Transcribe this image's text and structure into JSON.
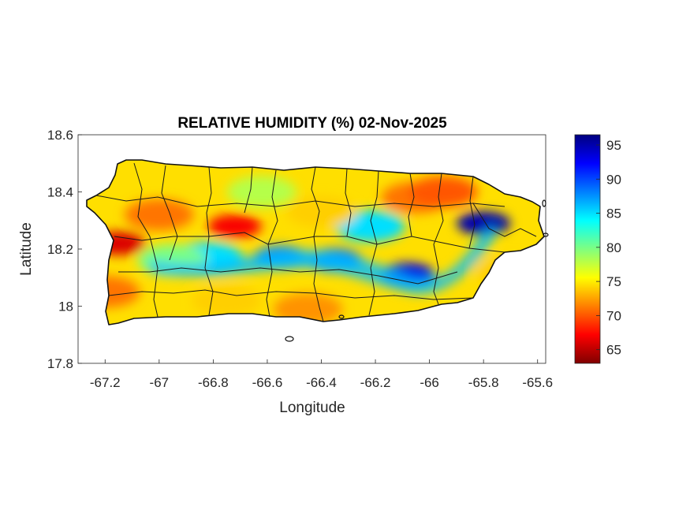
{
  "chart_data": {
    "type": "heatmap",
    "title": "RELATIVE HUMIDITY (%) 02-Nov-2025",
    "xlabel": "Longitude",
    "ylabel": "Latitude",
    "xlim": [
      -67.3,
      -65.57
    ],
    "ylim": [
      17.8,
      18.6
    ],
    "x_ticks": [
      "-67.2",
      "-67",
      "-66.8",
      "-66.6",
      "-66.4",
      "-66.2",
      "-66",
      "-65.8",
      "-65.6"
    ],
    "x_tick_values": [
      -67.2,
      -67.0,
      -66.8,
      -66.6,
      -66.4,
      -66.2,
      -66.0,
      -65.8,
      -65.6
    ],
    "y_ticks": [
      "17.8",
      "18",
      "18.2",
      "18.4",
      "18.6"
    ],
    "y_tick_values": [
      17.8,
      18.0,
      18.2,
      18.4,
      18.6
    ],
    "colorbar": {
      "min": 63,
      "max": 96.5,
      "ticks": [
        "65",
        "70",
        "75",
        "80",
        "85",
        "90",
        "95"
      ],
      "tick_values": [
        65,
        70,
        75,
        80,
        85,
        90,
        95
      ],
      "colormap": "jet"
    },
    "grid": false,
    "features": [
      {
        "lon": -65.8,
        "lat": 18.29,
        "value": 95
      },
      {
        "lon": -66.08,
        "lat": 18.11,
        "value": 93
      },
      {
        "lon": -66.35,
        "lat": 18.16,
        "value": 89
      },
      {
        "lon": -66.55,
        "lat": 18.17,
        "value": 88
      },
      {
        "lon": -66.82,
        "lat": 18.17,
        "value": 85
      },
      {
        "lon": -66.95,
        "lat": 18.16,
        "value": 80
      },
      {
        "lon": -66.22,
        "lat": 18.28,
        "value": 85
      },
      {
        "lon": -67.15,
        "lat": 18.22,
        "value": 66
      },
      {
        "lon": -66.72,
        "lat": 18.28,
        "value": 67
      },
      {
        "lon": -67.0,
        "lat": 18.32,
        "value": 71
      },
      {
        "lon": -67.2,
        "lat": 18.05,
        "value": 71
      },
      {
        "lon": -66.62,
        "lat": 18.4,
        "value": 78
      },
      {
        "lon": -66.4,
        "lat": 18.33,
        "value": 74
      },
      {
        "lon": -66.05,
        "lat": 18.38,
        "value": 71
      },
      {
        "lon": -65.95,
        "lat": 18.4,
        "value": 70
      },
      {
        "lon": -66.45,
        "lat": 17.99,
        "value": 72
      },
      {
        "lon": -66.75,
        "lat": 18.02,
        "value": 74
      },
      {
        "lon": -65.7,
        "lat": 18.12,
        "value": 74
      }
    ]
  }
}
